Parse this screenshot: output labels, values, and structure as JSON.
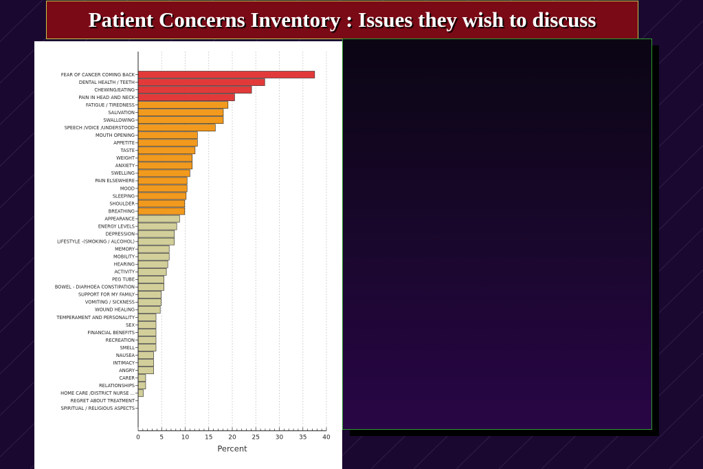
{
  "title": "Patient Concerns Inventory : Issues they wish to discuss",
  "colors": {
    "background": "#1a0830",
    "title_bg": "#7a0a16",
    "title_border": "#c9c94a",
    "panel_border": "#2e9e2e",
    "bar_red": "#e23a3a",
    "bar_orange": "#f29a1e",
    "bar_khaki": "#d3cf9a"
  },
  "chart_data": {
    "type": "bar",
    "orientation": "horizontal",
    "xlabel": "Percent",
    "ylabel": "",
    "xlim": [
      0,
      40
    ],
    "xticks": [
      0,
      5,
      10,
      15,
      20,
      25,
      30,
      35,
      40
    ],
    "grid": true,
    "categories": [
      "FEAR OF CANCER COMING BACK",
      "DENTAL HEALTH / TEETH",
      "CHEWING/EATING",
      "PAIN IN HEAD AND NECK",
      "FATIGUE / TIREDNESS",
      "SALIVATION",
      "SWALLOWING",
      "SPEECH /VOICE /UNDERSTOOD",
      "MOUTH OPENING",
      "APPETITE",
      "TASTE",
      "WEIGHT",
      "ANXIETY",
      "SWELLING",
      "PAIN ELSEWHERE",
      "MOOD",
      "SLEEPING",
      "SHOULDER",
      "BREATHING",
      "APPEARANCE",
      "ENERGY LEVELS",
      "DEPRESSION",
      "LIFESTYLE -(SMOKING / ALCOHOL)",
      "MEMORY",
      "MOBILITY",
      "HEARING",
      "ACTIVITY",
      "PEG TUBE",
      "BOWEL - DIARHOEA CONSTIPATION",
      "SUPPORT FOR MY FAMILY",
      "VOMITING / SICKNESS",
      "WOUND HEALING",
      "TEMPERAMENT AND PERSONALITY",
      "SEX",
      "FINANCIAL BENEFITS",
      "RECREATION",
      "SMELL",
      "NAUSEA",
      "INTIMACY",
      "ANGRY",
      "CARER",
      "RELATIONSHIPS",
      "HOME CARE /DISTRICT NURSE ...",
      "REGRET ABOUT TREATMENT",
      "SPIRITUAL / RELIGIOUS ASPECTS"
    ],
    "values": [
      37.5,
      26.9,
      24.1,
      20.5,
      19.1,
      18.1,
      18.1,
      16.4,
      12.6,
      12.6,
      12.1,
      11.5,
      11.5,
      11.0,
      10.4,
      10.4,
      10.2,
      9.9,
      9.9,
      8.8,
      8.2,
      7.7,
      7.7,
      6.6,
      6.6,
      6.3,
      6.0,
      5.5,
      5.5,
      4.9,
      4.9,
      4.7,
      3.8,
      3.8,
      3.8,
      3.8,
      3.8,
      3.3,
      3.3,
      3.3,
      1.6,
      1.6,
      1.1,
      0,
      0
    ],
    "colors": [
      "red",
      "red",
      "red",
      "red",
      "orange",
      "orange",
      "orange",
      "orange",
      "orange",
      "orange",
      "orange",
      "orange",
      "orange",
      "orange",
      "orange",
      "orange",
      "orange",
      "orange",
      "orange",
      "khaki",
      "khaki",
      "khaki",
      "khaki",
      "khaki",
      "khaki",
      "khaki",
      "khaki",
      "khaki",
      "khaki",
      "khaki",
      "khaki",
      "khaki",
      "khaki",
      "khaki",
      "khaki",
      "khaki",
      "khaki",
      "khaki",
      "khaki",
      "khaki",
      "khaki",
      "khaki",
      "khaki",
      "khaki",
      "khaki"
    ]
  }
}
